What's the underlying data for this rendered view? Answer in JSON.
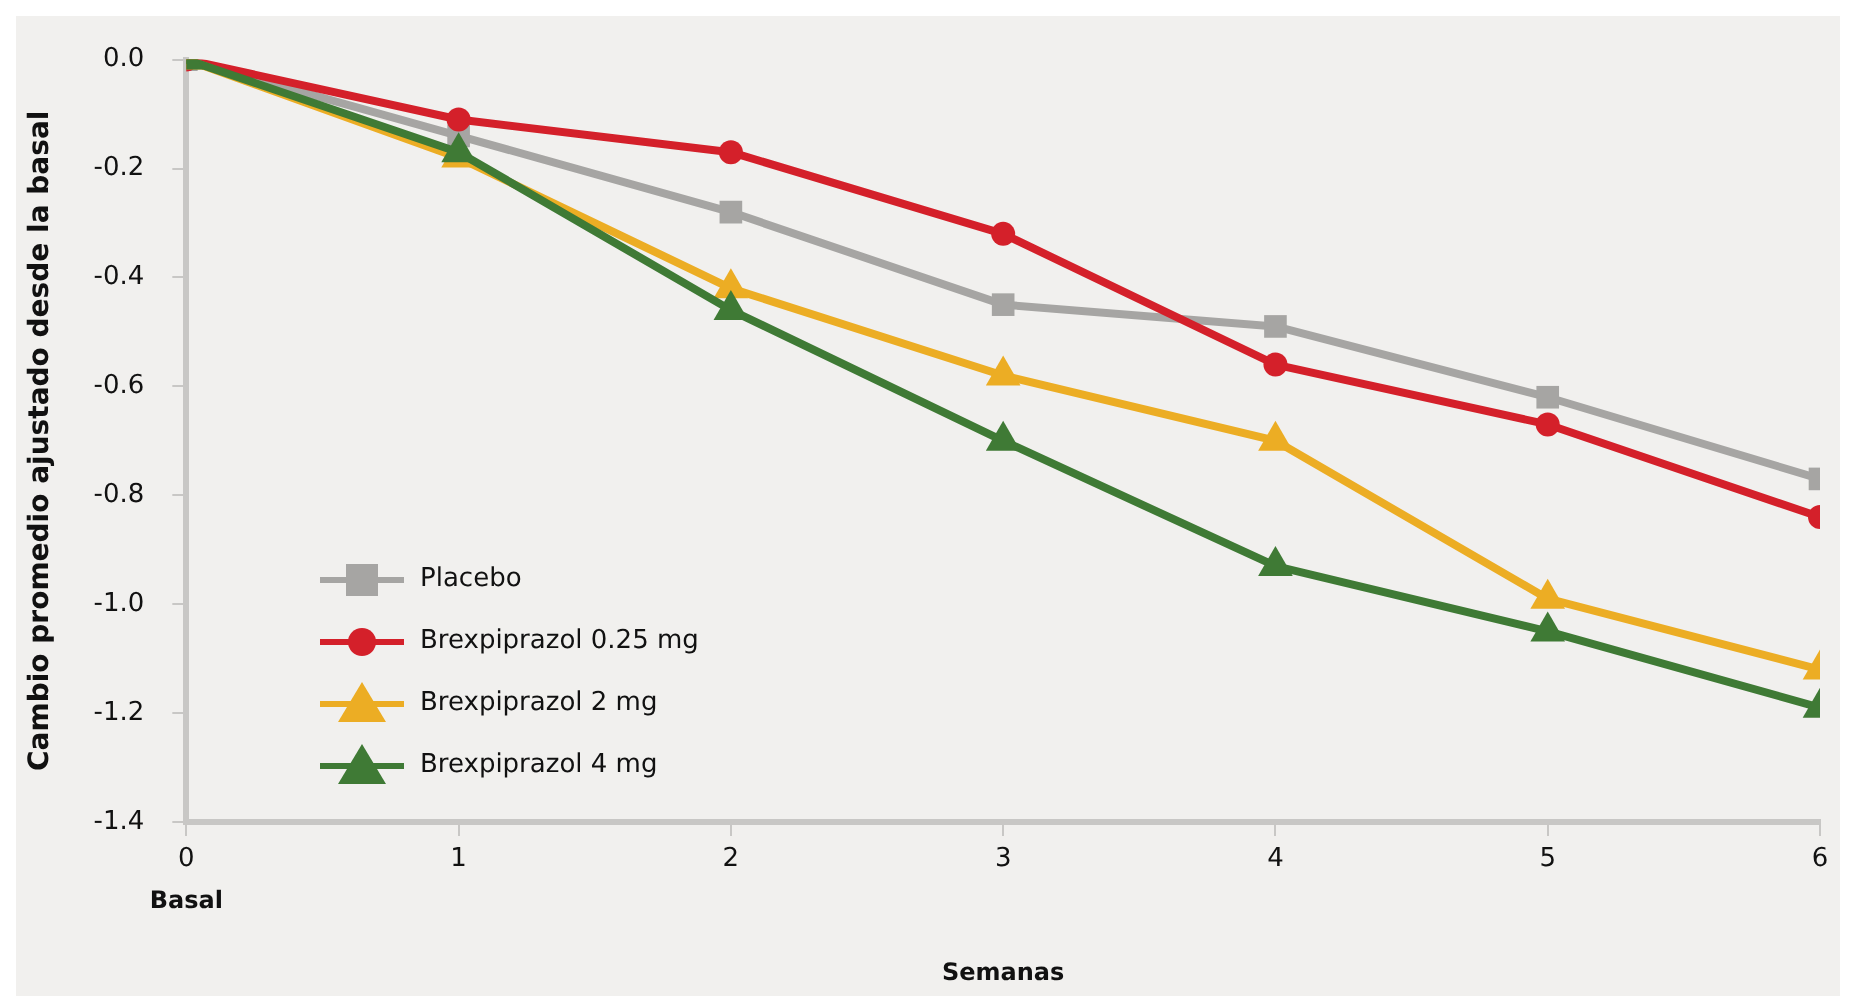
{
  "chart_data": {
    "type": "line",
    "xlabel": "Semanas",
    "ylabel": "Cambio promedio ajustado desde la basal",
    "x": [
      0,
      1,
      2,
      3,
      4,
      5,
      6
    ],
    "xlim": [
      0,
      6
    ],
    "xticks": [
      0,
      1,
      2,
      3,
      4,
      5,
      6
    ],
    "ylim": [
      -1.4,
      0
    ],
    "yticks": [
      {
        "value": 0,
        "label": "0.0"
      },
      -0.2,
      -0.4,
      -0.6,
      -0.8,
      {
        "value": -1,
        "label": "-1.0"
      },
      -1.2,
      -1.4
    ],
    "grid": false,
    "legend": "bottom left",
    "line_style": "solid",
    "annotations": [
      "Basal"
    ],
    "series": [
      {
        "name": "Placebo",
        "color": "#a6a5a3",
        "marker": "square",
        "values": [
          0,
          -0.14,
          -0.28,
          -0.45,
          -0.49,
          -0.62,
          -0.77
        ]
      },
      {
        "name": "Brexpiprazol 0.25 mg",
        "color": "#d4202a",
        "marker": "circle",
        "values": [
          0,
          -0.11,
          -0.17,
          -0.32,
          -0.56,
          -0.67,
          -0.84
        ]
      },
      {
        "name": "Brexpiprazol 2 mg",
        "color": "#ecad24",
        "marker": "triangle",
        "values": [
          0,
          -0.18,
          -0.42,
          -0.58,
          -0.7,
          -0.99,
          -1.12
        ]
      },
      {
        "name": "Brexpiprazol 4 mg",
        "color": "#3f7a35",
        "marker": "triangle",
        "values": [
          0,
          -0.17,
          -0.46,
          -0.7,
          -0.93,
          -1.05,
          -1.19
        ]
      }
    ]
  }
}
